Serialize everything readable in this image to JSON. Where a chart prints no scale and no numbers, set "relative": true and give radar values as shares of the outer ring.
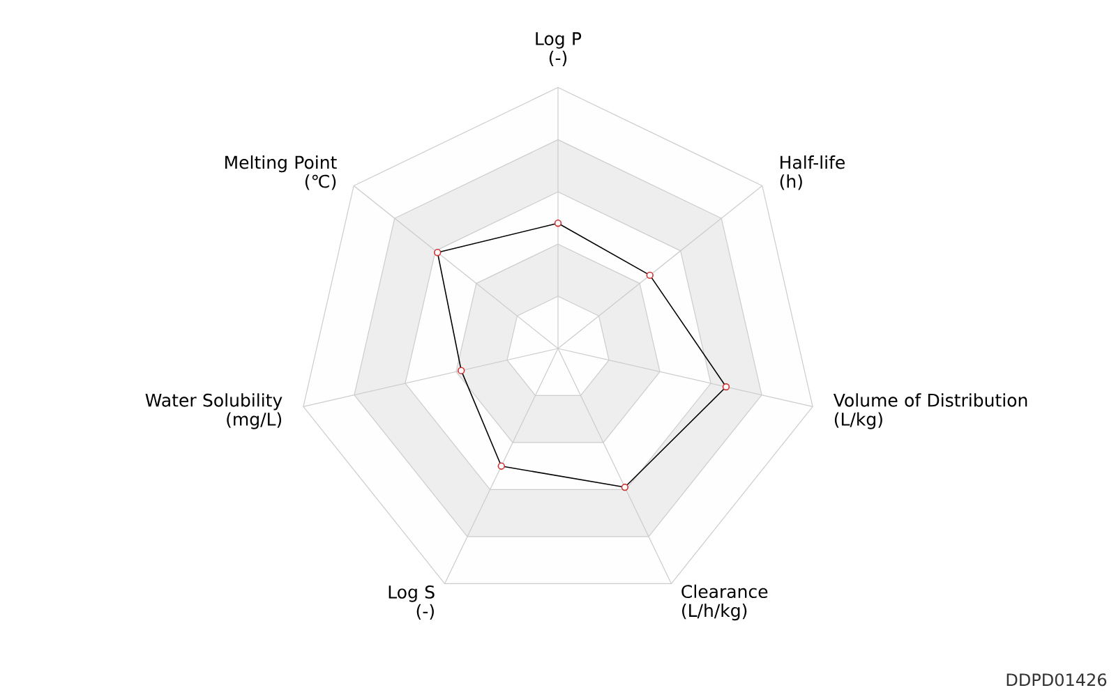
{
  "chart_data": {
    "type": "radar",
    "relative": true,
    "categories": [
      "Log P\n(-)",
      "Half-life\n(h)",
      "Volume of Distribution\n(L/kg)",
      "Clearance\n(L/h/kg)",
      "Log S\n(-)",
      "Water Solubility\n(mg/L)",
      "Melting Point\n(℃)"
    ],
    "series": [
      {
        "color": "#000000",
        "colors": [
          "#cf3030",
          "#cf3030",
          "#cf3030",
          "#cf3030",
          "#cf3030",
          "#cf3030",
          "#cf3030"
        ],
        "values": [
          0.48,
          0.45,
          0.66,
          0.59,
          0.5,
          0.38,
          0.59
        ]
      }
    ],
    "grid": true,
    "marker": "circle",
    "line_style": "solid",
    "annotations": [
      "DDPD01426"
    ]
  }
}
